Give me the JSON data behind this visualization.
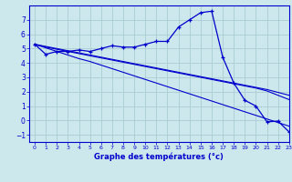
{
  "xlabel": "Graphe des températures (°c)",
  "bg_color": "#cce8ec",
  "grid_color": "#aaccd4",
  "line_color": "#0000cc",
  "xlim": [
    -0.5,
    23
  ],
  "ylim": [
    -1.5,
    8.0
  ],
  "yticks": [
    -1,
    0,
    1,
    2,
    3,
    4,
    5,
    6,
    7
  ],
  "xticks": [
    0,
    1,
    2,
    3,
    4,
    5,
    6,
    7,
    8,
    9,
    10,
    11,
    12,
    13,
    14,
    15,
    16,
    17,
    18,
    19,
    20,
    21,
    22,
    23
  ],
  "hours": [
    0,
    1,
    2,
    3,
    4,
    5,
    6,
    7,
    8,
    9,
    10,
    11,
    12,
    13,
    14,
    15,
    16,
    17,
    18,
    19,
    20,
    21,
    22,
    23
  ],
  "temp_main": [
    5.3,
    4.6,
    4.8,
    4.8,
    4.9,
    4.8,
    5.0,
    5.2,
    5.1,
    5.1,
    5.3,
    5.5,
    5.5,
    6.5,
    7.0,
    7.5,
    7.6,
    4.4,
    2.6,
    1.4,
    1.0,
    -0.1,
    -0.05,
    -0.8
  ],
  "temp_diag1": [
    5.3,
    5.05,
    4.8,
    4.55,
    4.3,
    4.1,
    3.85,
    3.6,
    3.35,
    3.1,
    2.85,
    2.6,
    2.35,
    2.1,
    1.85,
    1.6,
    1.35,
    1.1,
    0.85,
    0.6,
    0.35,
    0.1,
    -0.15,
    -0.4
  ],
  "temp_diag2": [
    5.3,
    5.1,
    4.95,
    4.8,
    4.65,
    4.5,
    4.35,
    4.2,
    4.05,
    3.9,
    3.75,
    3.6,
    3.45,
    3.3,
    3.15,
    3.0,
    2.85,
    2.7,
    2.55,
    2.4,
    2.25,
    2.05,
    1.75,
    1.45
  ],
  "temp_diag3": [
    5.3,
    5.15,
    5.0,
    4.85,
    4.7,
    4.55,
    4.4,
    4.25,
    4.1,
    3.95,
    3.8,
    3.65,
    3.5,
    3.35,
    3.2,
    3.05,
    2.9,
    2.75,
    2.6,
    2.45,
    2.3,
    2.15,
    1.95,
    1.75
  ]
}
